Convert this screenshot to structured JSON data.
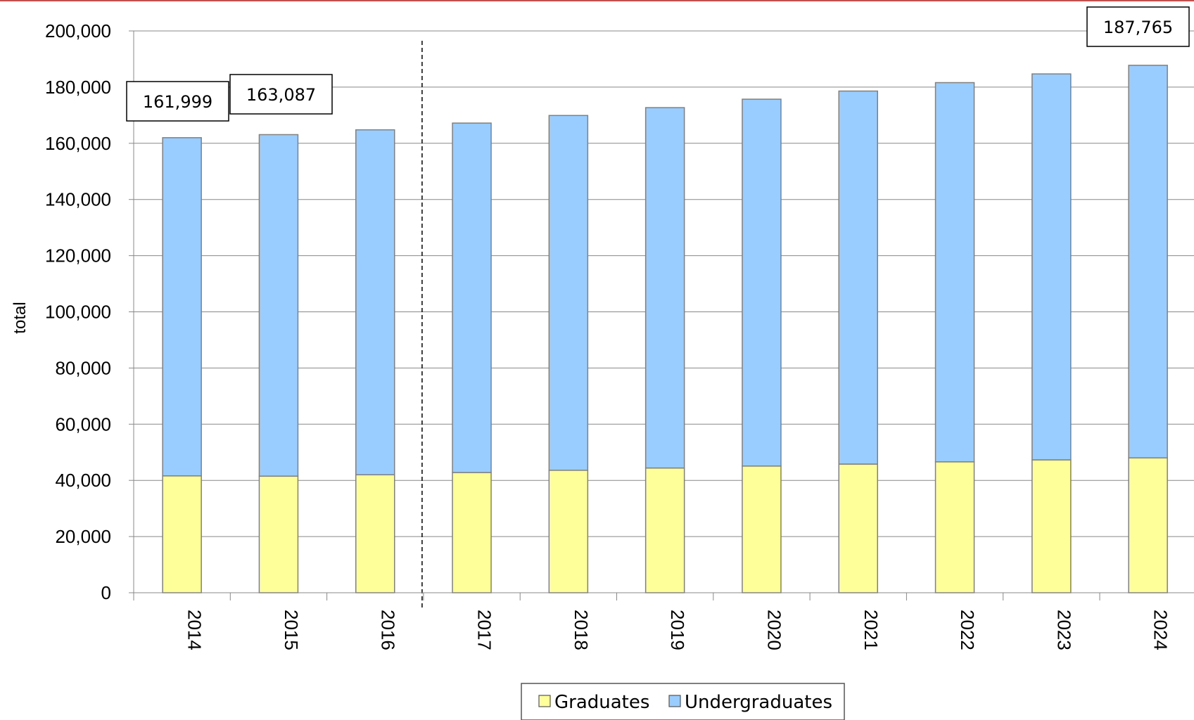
{
  "chart_data": {
    "type": "bar",
    "stacked": true,
    "categories": [
      "2014",
      "2015",
      "2016",
      "2017",
      "2018",
      "2019",
      "2020",
      "2021",
      "2022",
      "2023",
      "2024"
    ],
    "series": [
      {
        "name": "Graduates",
        "color": "#ffff99",
        "values": [
          41600,
          41500,
          42000,
          42800,
          43600,
          44400,
          45100,
          45800,
          46600,
          47300,
          48000
        ]
      },
      {
        "name": "Undergraduates",
        "color": "#99ccff",
        "values": [
          120399,
          121587,
          122800,
          124400,
          126300,
          128300,
          130600,
          132800,
          135000,
          137400,
          139765
        ]
      }
    ],
    "totals": [
      161999,
      163087,
      164800,
      167200,
      169900,
      172700,
      175700,
      178600,
      181600,
      184700,
      187765
    ],
    "callouts": [
      {
        "category": "2014",
        "label": "161,999"
      },
      {
        "category": "2015",
        "label": "163,087"
      },
      {
        "category": "2024",
        "label": "187,765"
      }
    ],
    "divider_after_category": "2016",
    "xlabel": "",
    "ylabel": "total",
    "ylim": [
      0,
      200000
    ],
    "yticks": [
      0,
      20000,
      40000,
      60000,
      80000,
      100000,
      120000,
      140000,
      160000,
      180000,
      200000
    ],
    "ytick_labels": [
      "0",
      "20,000",
      "40,000",
      "60,000",
      "80,000",
      "100,000",
      "120,000",
      "140,000",
      "160,000",
      "180,000",
      "200,000"
    ],
    "grid": true,
    "legend_position": "bottom-center",
    "legend": [
      "Graduates",
      "Undergraduates"
    ],
    "colors": {
      "gridline": "#888888",
      "bar_border": "#808080",
      "accent_rule": "#c0504d"
    }
  }
}
